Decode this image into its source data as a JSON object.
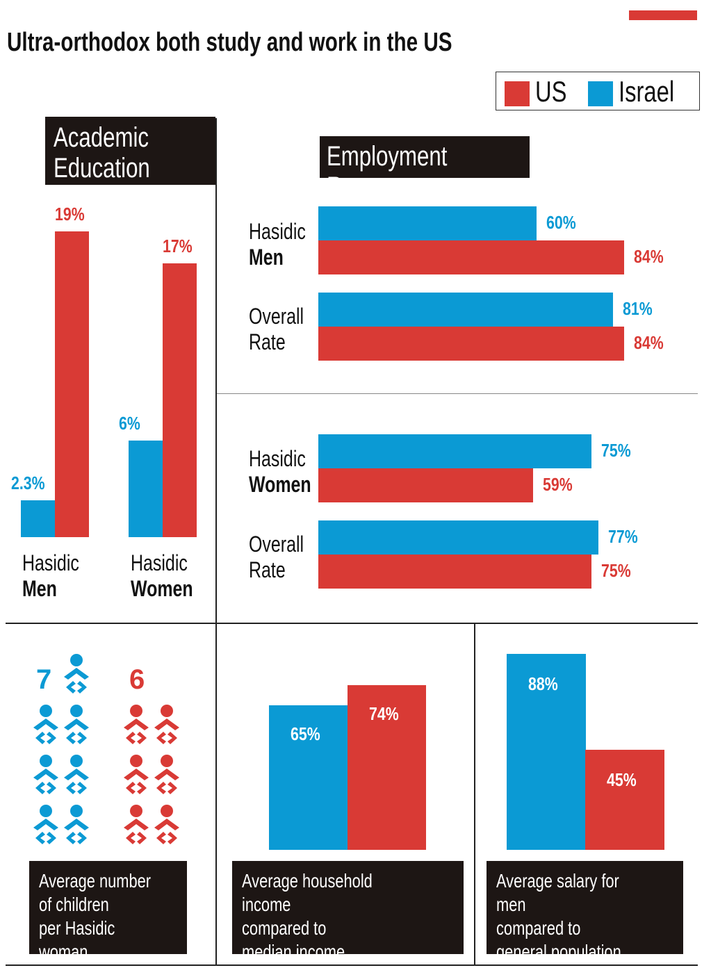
{
  "title": "Ultra-orthodox both study and work in the US",
  "colors": {
    "us": "#d93a35",
    "israel": "#0b9ad4",
    "dark": "#1d1614"
  },
  "legend": [
    {
      "label": "US",
      "color": "#d93a35"
    },
    {
      "label": "Israel",
      "color": "#0b9ad4"
    }
  ],
  "academic": {
    "heading": "Academic\nEducation",
    "categories": [
      {
        "line1": "Hasidic",
        "line2": "Men"
      },
      {
        "line1": "Hasidic",
        "line2": "Women"
      }
    ]
  },
  "employment": {
    "heading": "Employment Rate",
    "rows": [
      {
        "line1": "Hasidic",
        "line2": "Men",
        "bold2": true
      },
      {
        "line1": "Overall",
        "line2": "Rate",
        "bold2": false
      },
      {
        "line1": "Hasidic",
        "line2": "Women",
        "bold2": true
      },
      {
        "line1": "Overall",
        "line2": "Rate",
        "bold2": false
      }
    ]
  },
  "children": {
    "caption": "Average number\nof children\nper Hasidic woman"
  },
  "income": {
    "caption": "Average household income\ncompared to\nmedian income"
  },
  "salary": {
    "caption": "Average salary for men\ncompared to\ngeneral population"
  },
  "chart_data": [
    {
      "type": "bar",
      "title": "Academic Education",
      "categories": [
        "Hasidic Men",
        "Hasidic Women"
      ],
      "series": [
        {
          "name": "Israel",
          "values": [
            2.3,
            6
          ],
          "labels": [
            "2.3%",
            "6%"
          ]
        },
        {
          "name": "US",
          "values": [
            19,
            17
          ],
          "labels": [
            "19%",
            "17%"
          ]
        }
      ],
      "unit": "%"
    },
    {
      "type": "bar",
      "orientation": "horizontal",
      "title": "Employment Rate",
      "categories": [
        "Hasidic Men",
        "Overall Rate",
        "Hasidic Women",
        "Overall Rate"
      ],
      "series": [
        {
          "name": "Israel",
          "values": [
            60,
            81,
            75,
            77
          ],
          "labels": [
            "60%",
            "81%",
            "75%",
            "77%"
          ]
        },
        {
          "name": "US",
          "values": [
            84,
            84,
            59,
            75
          ],
          "labels": [
            "84%",
            "84%",
            "59%",
            "75%"
          ]
        }
      ],
      "unit": "%"
    },
    {
      "type": "pictogram",
      "title": "Average number of children per Hasidic woman",
      "series": [
        {
          "name": "Israel",
          "values": [
            7
          ],
          "labels": [
            "7"
          ]
        },
        {
          "name": "US",
          "values": [
            6
          ],
          "labels": [
            "6"
          ]
        }
      ]
    },
    {
      "type": "bar",
      "title": "Average household income compared to median income",
      "series": [
        {
          "name": "Israel",
          "values": [
            65
          ],
          "labels": [
            "65%"
          ]
        },
        {
          "name": "US",
          "values": [
            74
          ],
          "labels": [
            "74%"
          ]
        }
      ],
      "unit": "%"
    },
    {
      "type": "bar",
      "title": "Average salary for men compared to general population",
      "series": [
        {
          "name": "Israel",
          "values": [
            88
          ],
          "labels": [
            "88%"
          ]
        },
        {
          "name": "US",
          "values": [
            45
          ],
          "labels": [
            "45%"
          ]
        }
      ],
      "unit": "%"
    }
  ]
}
